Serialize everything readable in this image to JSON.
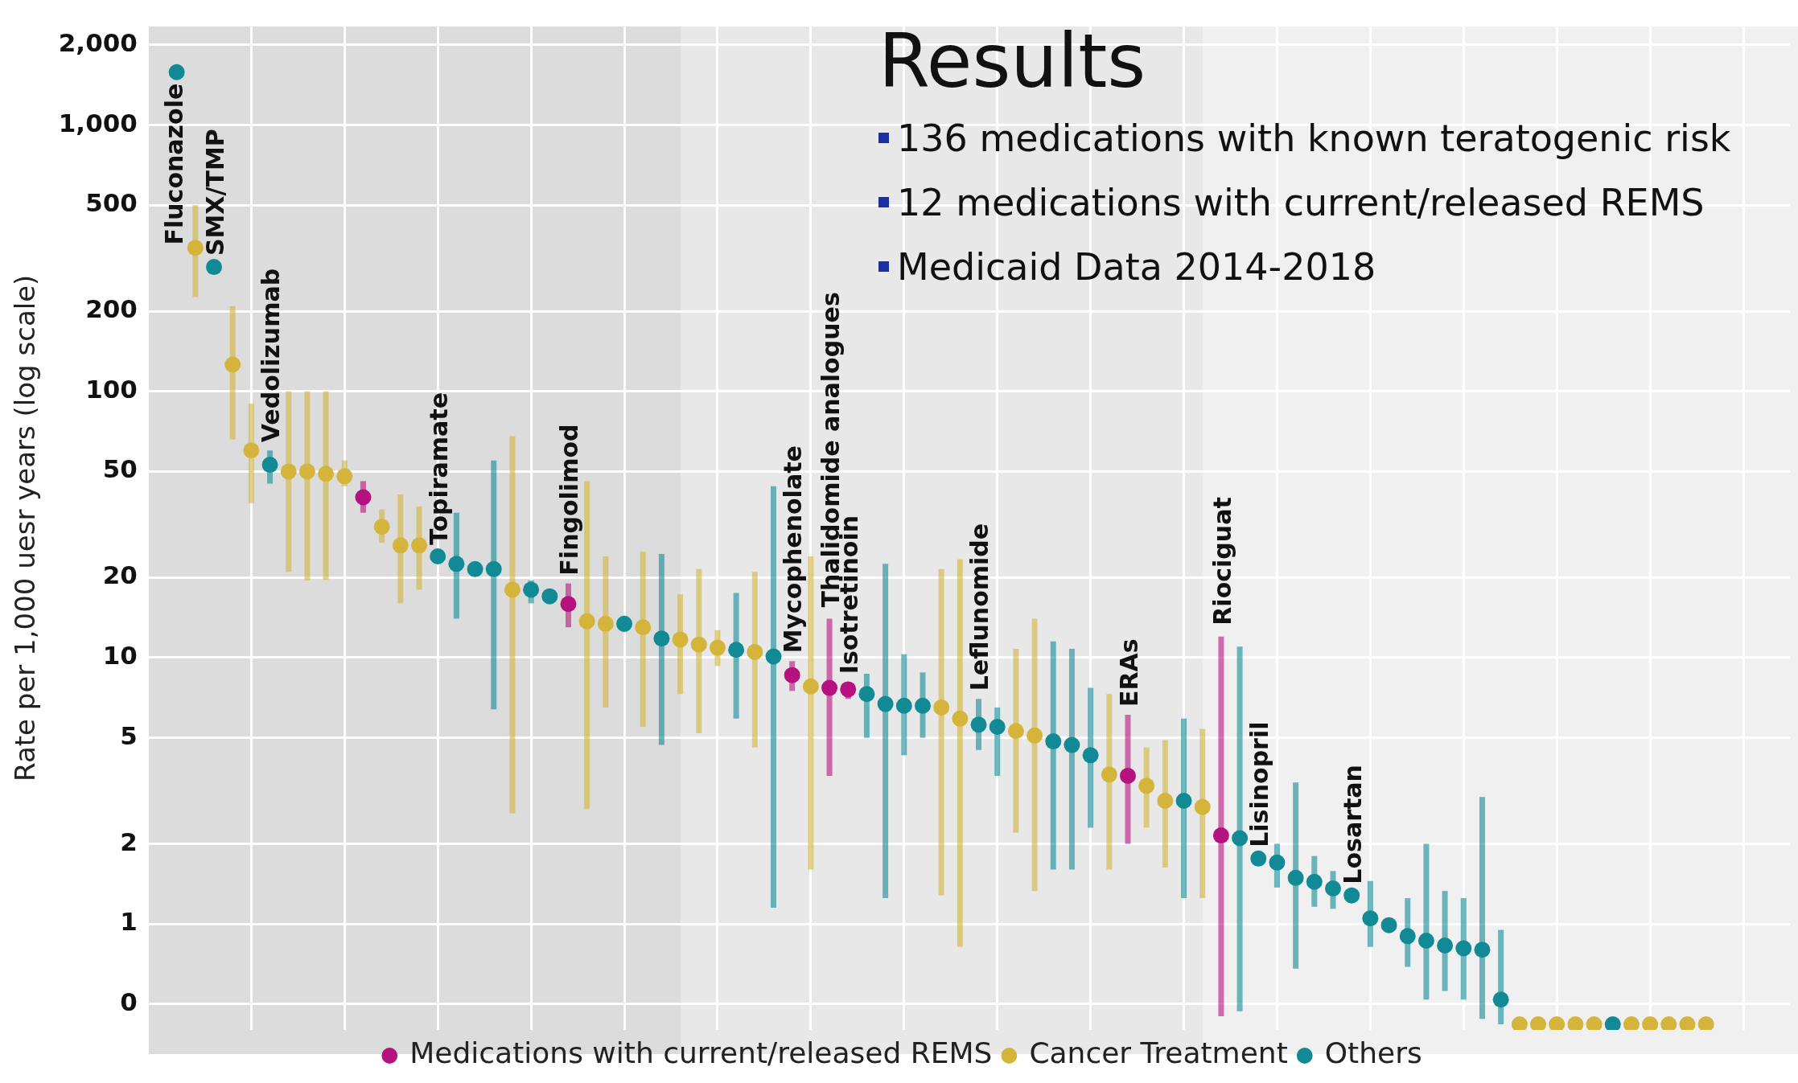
{
  "chart_data": {
    "type": "scatter",
    "title": "Results",
    "ylabel": "Rate per 1,000 uesr years (log scale)",
    "log": true,
    "grid": true,
    "legend": "bottom",
    "marker": "circle",
    "tick_labels": "y",
    "categories": [
      null,
      null,
      null,
      null,
      null,
      null,
      null,
      null,
      null,
      null,
      null,
      null,
      null,
      null,
      null,
      null,
      null,
      null,
      null,
      null,
      null,
      null,
      null,
      null,
      null,
      null,
      null,
      null,
      null,
      null,
      null,
      null,
      null,
      null,
      null,
      null,
      null,
      null,
      null,
      null,
      null,
      null,
      null,
      null,
      null,
      null,
      null,
      null,
      null,
      null,
      null,
      null,
      null,
      null,
      null,
      null,
      null,
      null,
      null,
      null,
      null,
      null,
      null,
      null,
      null,
      null,
      null,
      null,
      null,
      null,
      null,
      null,
      null,
      null,
      null,
      null,
      null,
      null,
      null,
      null,
      null,
      null,
      null,
      null,
      null,
      null,
      null,
      null
    ],
    "ylim": [
      0.4,
      2350
    ],
    "yticks": [
      {
        "value": 0.5,
        "label": "0"
      },
      1,
      2,
      5,
      10,
      20,
      50,
      100,
      200,
      500,
      {
        "value": 1000,
        "label": "1,000"
      },
      {
        "value": 2000,
        "label": "2,000"
      }
    ],
    "series": [
      {
        "name": "Medications with current/released REMS",
        "color": "#b5127f",
        "values": [
          null,
          null,
          null,
          null,
          null,
          null,
          null,
          null,
          null,
          null,
          null,
          40,
          null,
          null,
          null,
          null,
          null,
          null,
          null,
          null,
          null,
          null,
          15.9,
          null,
          null,
          null,
          null,
          null,
          null,
          null,
          null,
          null,
          null,
          null,
          8.6,
          null,
          7.7,
          7.6,
          null,
          null,
          null,
          null,
          null,
          null,
          null,
          null,
          null,
          null,
          null,
          null,
          null,
          null,
          3.6,
          null,
          null,
          null,
          null,
          2.15,
          null,
          null,
          null,
          null,
          null,
          null,
          null,
          null,
          null,
          null,
          null,
          null,
          null,
          null,
          null,
          null,
          null,
          null,
          null,
          null,
          null,
          null,
          null,
          null,
          null,
          null,
          null,
          null,
          null,
          null
        ],
        "errors": [
          null,
          null,
          null,
          null,
          null,
          null,
          null,
          null,
          null,
          null,
          null,
          [
            35,
            46
          ],
          null,
          null,
          null,
          null,
          null,
          null,
          null,
          null,
          null,
          null,
          [
            13,
            19
          ],
          null,
          null,
          null,
          null,
          null,
          null,
          null,
          null,
          null,
          null,
          null,
          [
            7.5,
            9.7
          ],
          null,
          [
            3.6,
            14
          ],
          [
            7,
            8.1
          ],
          null,
          null,
          null,
          null,
          null,
          null,
          null,
          null,
          null,
          null,
          null,
          null,
          null,
          null,
          [
            2,
            6.1
          ],
          null,
          null,
          null,
          null,
          [
            0.45,
            12
          ],
          null,
          null,
          null,
          null,
          null,
          null,
          null,
          null,
          null,
          null,
          null,
          null,
          null,
          null,
          null,
          null,
          null,
          null,
          null,
          null,
          null,
          null,
          null,
          null,
          null,
          null,
          null,
          null,
          null,
          null
        ]
      },
      {
        "name": "Cancer Treatment",
        "color": "#d4b43a",
        "values": [
          null,
          null,
          346,
          null,
          126,
          60,
          null,
          50,
          50,
          49,
          48,
          null,
          31,
          26.4,
          26.4,
          null,
          null,
          null,
          null,
          18,
          null,
          null,
          null,
          13.7,
          13.4,
          null,
          13,
          null,
          11.7,
          11.2,
          10.9,
          null,
          10.5,
          null,
          null,
          7.8,
          null,
          null,
          null,
          null,
          null,
          null,
          6.5,
          5.9,
          null,
          null,
          5.3,
          5.1,
          null,
          null,
          null,
          3.64,
          null,
          3.3,
          2.9,
          null,
          2.75,
          null,
          null,
          null,
          null,
          null,
          null,
          null,
          null,
          null,
          null,
          null,
          null,
          null,
          null,
          null,
          null,
          0.42,
          0.42,
          0.42,
          0.42,
          0.42,
          null,
          0.42,
          0.42,
          0.42,
          0.42,
          0.42,
          null,
          null,
          null,
          null
        ],
        "errors": [
          null,
          null,
          [
            226,
            500
          ],
          null,
          [
            66,
            209
          ],
          [
            38,
            90
          ],
          null,
          [
            21,
            100
          ],
          [
            19.5,
            100
          ],
          [
            19.6,
            100
          ],
          [
            44,
            55
          ],
          null,
          [
            27,
            36
          ],
          [
            16,
            41
          ],
          [
            18,
            37
          ],
          null,
          null,
          null,
          null,
          [
            2.6,
            68
          ],
          null,
          null,
          null,
          [
            2.7,
            46
          ],
          [
            6.5,
            24
          ],
          null,
          [
            5.5,
            25
          ],
          null,
          [
            7.3,
            17.3
          ],
          [
            5.2,
            21.5
          ],
          [
            9.3,
            12.7
          ],
          null,
          [
            4.6,
            21
          ],
          null,
          null,
          [
            1.6,
            24
          ],
          null,
          null,
          null,
          null,
          null,
          null,
          [
            1.28,
            21.5
          ],
          [
            0.82,
            23.4
          ],
          null,
          null,
          [
            2.2,
            10.8
          ],
          [
            1.33,
            14
          ],
          null,
          null,
          null,
          [
            1.6,
            7.3
          ],
          null,
          [
            2.3,
            4.6
          ],
          [
            1.63,
            4.9
          ],
          null,
          [
            1.25,
            5.4
          ],
          null,
          null,
          null,
          null,
          null,
          null,
          null,
          null,
          null,
          null,
          null,
          null,
          null,
          null,
          null,
          null,
          null,
          null,
          null,
          null,
          null,
          null,
          null,
          null,
          null,
          null,
          null,
          null,
          null,
          null,
          null
        ]
      },
      {
        "name": "Others",
        "color": "#128a96",
        "values": [
          null,
          1580,
          null,
          293,
          null,
          null,
          53,
          null,
          null,
          null,
          null,
          null,
          null,
          null,
          null,
          24,
          22.5,
          21.5,
          21.5,
          null,
          18,
          17,
          null,
          null,
          null,
          13.4,
          null,
          11.8,
          null,
          null,
          null,
          10.7,
          null,
          10.1,
          null,
          null,
          null,
          null,
          7.3,
          6.7,
          6.6,
          6.6,
          null,
          null,
          5.6,
          5.5,
          null,
          null,
          4.85,
          4.7,
          4.3,
          null,
          null,
          null,
          null,
          2.9,
          null,
          null,
          2.1,
          1.76,
          1.7,
          1.49,
          1.44,
          1.36,
          1.28,
          1.05,
          0.99,
          0.9,
          0.865,
          0.83,
          0.81,
          0.8,
          0.52,
          null,
          null,
          null,
          null,
          null,
          0.42,
          null,
          null,
          null,
          null,
          null,
          null,
          null,
          null,
          null
        ],
        "errors": [
          null,
          null,
          null,
          null,
          null,
          null,
          [
            45,
            60
          ],
          null,
          null,
          null,
          null,
          null,
          null,
          null,
          null,
          null,
          [
            14,
            35
          ],
          null,
          [
            6.4,
            55
          ],
          null,
          [
            16,
            19.5
          ],
          null,
          null,
          null,
          null,
          [
            12.5,
            14.3
          ],
          null,
          [
            4.7,
            24.5
          ],
          null,
          null,
          null,
          [
            5.9,
            17.5
          ],
          null,
          [
            1.15,
            44
          ],
          null,
          null,
          null,
          null,
          [
            5,
            8.7
          ],
          [
            1.25,
            22.5
          ],
          [
            4.3,
            10.3
          ],
          [
            5,
            8.8
          ],
          null,
          null,
          [
            4.5,
            7
          ],
          [
            3.6,
            6.5
          ],
          null,
          null,
          [
            1.6,
            11.5
          ],
          [
            1.6,
            10.8
          ],
          [
            2.3,
            7.7
          ],
          null,
          null,
          null,
          null,
          [
            1.25,
            5.9
          ],
          null,
          null,
          [
            0.47,
            11
          ],
          null,
          [
            1.37,
            2
          ],
          [
            0.68,
            3.4
          ],
          [
            1.16,
            1.8
          ],
          [
            1.14,
            1.58
          ],
          null,
          [
            0.82,
            1.45
          ],
          null,
          [
            0.69,
            1.25
          ],
          [
            0.52,
            2
          ],
          [
            0.56,
            1.33
          ],
          [
            0.52,
            1.25
          ],
          [
            0.44,
            3
          ],
          [
            0.42,
            0.95
          ],
          null,
          null,
          null,
          null,
          null,
          null,
          null,
          null,
          null,
          null,
          null,
          null,
          null,
          null,
          null
        ]
      }
    ],
    "annotations": [
      "136 medications with known teratogenic risk",
      "12 medications with current/released REMS",
      "Medicaid Data 2014-2018",
      {
        "text": "Fluconazole",
        "y": 1580
      },
      {
        "text": "SMX/TMP",
        "y": 293
      },
      {
        "text": "Vedolizumab",
        "y": 53
      },
      {
        "text": "Topiramate",
        "y": 24
      },
      {
        "text": "Fingolimod",
        "y": 15.9
      },
      {
        "text": "Mycophenolate",
        "y": 8.6
      },
      {
        "text": "Thalidomide analogues",
        "y": 14
      },
      {
        "text": "Isotretinoin",
        "y": 7.6
      },
      {
        "text": "Leflunomide",
        "y": 5.6
      },
      {
        "text": "ERAs",
        "y": 3.6
      },
      {
        "text": "Riociguat",
        "y": 12
      },
      {
        "text": "Lisinopril",
        "y": 1.76
      },
      {
        "text": "Losartan",
        "y": 1.28
      }
    ]
  }
}
